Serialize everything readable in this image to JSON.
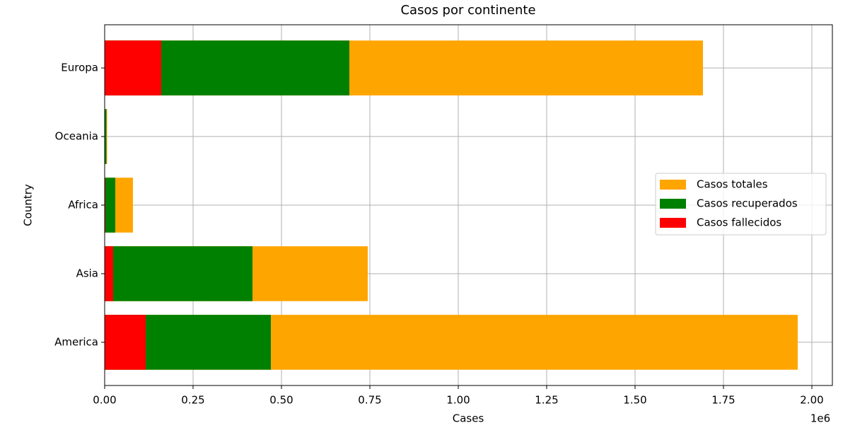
{
  "chart_data": {
    "type": "barh",
    "title": "Casos por continente",
    "xlabel": "Cases",
    "ylabel": "Country",
    "x_offset_label": "1e6",
    "categories": [
      "America",
      "Asia",
      "Africa",
      "Oceania",
      "Europa"
    ],
    "series": [
      {
        "name": "Casos totales",
        "color": "#ffa500",
        "values": [
          1960000,
          744000,
          80000,
          6800,
          1692000
        ]
      },
      {
        "name": "Casos recuperados",
        "color": "#008000",
        "values": [
          470000,
          418000,
          30000,
          5000,
          692000
        ]
      },
      {
        "name": "Casos fallecidos",
        "color": "#ff0000",
        "values": [
          116000,
          24000,
          2000,
          100,
          160000
        ]
      }
    ],
    "xlim": [
      0,
      2058000
    ],
    "xticks": [
      {
        "value": 0,
        "label": "0.00"
      },
      {
        "value": 250000,
        "label": "0.25"
      },
      {
        "value": 500000,
        "label": "0.50"
      },
      {
        "value": 750000,
        "label": "0.75"
      },
      {
        "value": 1000000,
        "label": "1.00"
      },
      {
        "value": 1250000,
        "label": "1.25"
      },
      {
        "value": 1500000,
        "label": "1.50"
      },
      {
        "value": 1750000,
        "label": "1.75"
      },
      {
        "value": 2000000,
        "label": "2.00"
      }
    ],
    "grid": true,
    "legend": "center right"
  }
}
